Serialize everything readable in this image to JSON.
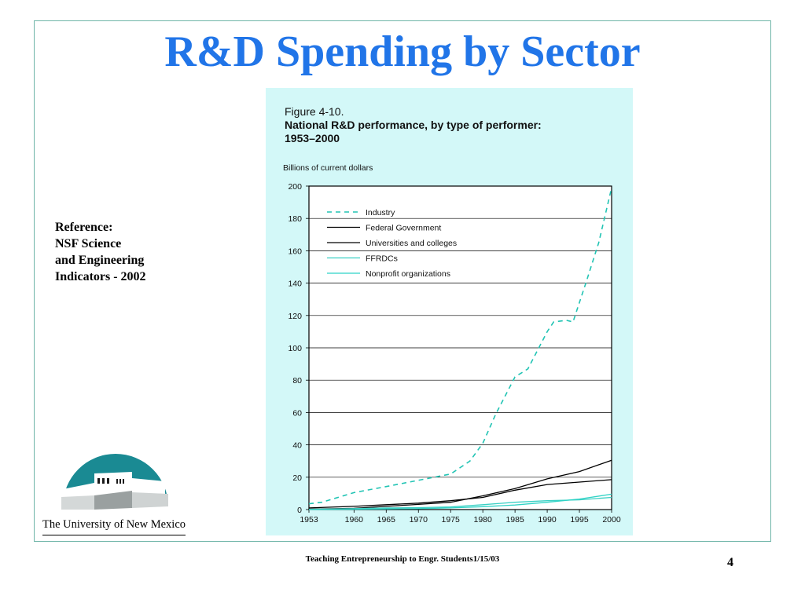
{
  "slide": {
    "title": "R&D Spending by Sector",
    "reference": [
      "Reference:",
      "NSF Science",
      "and Engineering",
      "Indicators - 2002"
    ],
    "university": "The University of New Mexico",
    "footer": "Teaching Entrepreneurship to Engr. Students1/15/03",
    "page_number": "4"
  },
  "colors": {
    "title": "#2175e8",
    "figure_bg": "#d3f8f8",
    "logo_teal": "#1a8a93",
    "industry": "#22c4b4",
    "ffrdc": "#3ad0c4",
    "nonprofit": "#2fd3c6",
    "black": "#000000"
  },
  "chart_data": {
    "type": "line",
    "figure_label": "Figure 4-10.",
    "title": "National R&D performance, by type of performer: 1953–2000",
    "title_lines": [
      "National R&D performance, by type of performer:",
      "1953–2000"
    ],
    "ylabel": "Billions of current dollars",
    "ylim": [
      0,
      200
    ],
    "xlim": [
      1953,
      2000
    ],
    "yticks": [
      0,
      20,
      40,
      60,
      80,
      100,
      120,
      140,
      160,
      180,
      200
    ],
    "xticks": [
      1953,
      1960,
      1965,
      1970,
      1975,
      1980,
      1985,
      1990,
      1995,
      2000
    ],
    "grid": "horizontal",
    "legend_position": "top-left",
    "series": [
      {
        "name": "Industry",
        "style": "dashed",
        "color": "#22c4b4",
        "x": [
          1953,
          1955,
          1960,
          1965,
          1970,
          1975,
          1978,
          1980,
          1982,
          1985,
          1987,
          1990,
          1991,
          1993,
          1994,
          1996,
          1998,
          2000
        ],
        "y": [
          3.6,
          4.5,
          10.5,
          14.2,
          18.1,
          22.0,
          30.0,
          41.0,
          59.0,
          82.0,
          87.0,
          110.0,
          116.0,
          117.0,
          116.0,
          140.0,
          165.0,
          199.0
        ]
      },
      {
        "name": "Federal Government",
        "style": "solid",
        "color": "#000000",
        "x": [
          1953,
          1960,
          1965,
          1970,
          1975,
          1980,
          1985,
          1990,
          1995,
          2000
        ],
        "y": [
          1.0,
          2.0,
          3.0,
          4.0,
          5.5,
          7.5,
          12.0,
          15.5,
          17.0,
          18.5
        ]
      },
      {
        "name": "Universities and colleges",
        "style": "solid",
        "color": "#000000",
        "x": [
          1953,
          1960,
          1965,
          1970,
          1975,
          1980,
          1985,
          1990,
          1995,
          2000
        ],
        "y": [
          0.3,
          0.8,
          2.0,
          3.2,
          4.5,
          8.5,
          13.0,
          19.0,
          23.5,
          30.5
        ]
      },
      {
        "name": "FFRDCs",
        "style": "solid",
        "color": "#3ad0c4",
        "x": [
          1953,
          1960,
          1965,
          1970,
          1975,
          1980,
          1985,
          1990,
          1995,
          2000
        ],
        "y": [
          0.2,
          0.6,
          1.0,
          1.2,
          1.6,
          3.0,
          4.5,
          5.5,
          6.0,
          7.5
        ]
      },
      {
        "name": "Nonprofit organizations",
        "style": "solid",
        "color": "#2fd3c6",
        "x": [
          1953,
          1960,
          1965,
          1970,
          1975,
          1980,
          1985,
          1990,
          1995,
          2000
        ],
        "y": [
          0.1,
          0.2,
          0.4,
          0.6,
          1.0,
          1.8,
          2.8,
          4.5,
          6.5,
          9.5
        ]
      }
    ]
  }
}
